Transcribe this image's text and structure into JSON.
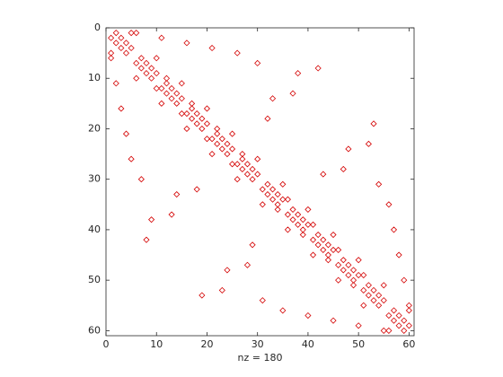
{
  "chart_data": {
    "type": "scatter",
    "marker": "diamond",
    "color": "#d40000",
    "xlabel": "nz = 180",
    "xlim": [
      0,
      61
    ],
    "ylim": [
      0,
      61
    ],
    "y_reverse": true,
    "xticks": [
      0,
      10,
      20,
      30,
      40,
      50,
      60
    ],
    "yticks": [
      0,
      10,
      20,
      30,
      40,
      50,
      60
    ],
    "x": [
      2,
      3,
      4,
      5,
      5,
      7,
      8,
      9,
      10,
      10,
      12,
      13,
      14,
      15,
      15,
      17,
      18,
      19,
      20,
      20,
      22,
      23,
      24,
      25,
      25,
      27,
      28,
      29,
      30,
      30,
      32,
      33,
      34,
      35,
      35,
      37,
      38,
      39,
      40,
      40,
      42,
      43,
      44,
      45,
      45,
      47,
      48,
      49,
      50,
      50,
      52,
      53,
      54,
      55,
      55,
      57,
      58,
      59,
      60,
      60,
      6,
      11,
      16,
      21,
      26,
      30,
      12,
      17,
      22,
      27,
      42,
      38,
      37,
      33,
      32,
      53,
      52,
      48,
      47,
      43,
      54,
      36,
      41,
      46,
      51,
      56,
      57,
      58,
      59,
      60,
      1,
      2,
      3,
      4,
      1,
      6,
      7,
      8,
      9,
      6,
      11,
      12,
      13,
      14,
      11,
      16,
      17,
      18,
      19,
      16,
      21,
      22,
      23,
      24,
      21,
      26,
      27,
      28,
      29,
      26,
      31,
      32,
      33,
      34,
      31,
      36,
      37,
      38,
      39,
      36,
      41,
      42,
      43,
      44,
      41,
      46,
      47,
      48,
      49,
      46,
      51,
      52,
      53,
      54,
      51,
      56,
      57,
      58,
      59,
      56,
      1,
      2,
      3,
      4,
      5,
      7,
      10,
      15,
      20,
      25,
      8,
      9,
      13,
      14,
      18,
      19,
      23,
      24,
      28,
      29,
      31,
      34,
      39,
      44,
      49,
      35,
      40,
      45,
      50,
      55
    ],
    "y": [
      1,
      2,
      3,
      4,
      1,
      6,
      7,
      8,
      9,
      6,
      11,
      12,
      13,
      14,
      11,
      16,
      17,
      18,
      19,
      16,
      21,
      22,
      23,
      24,
      21,
      26,
      27,
      28,
      29,
      26,
      31,
      32,
      33,
      34,
      31,
      36,
      37,
      38,
      39,
      36,
      41,
      42,
      43,
      44,
      41,
      46,
      47,
      48,
      49,
      46,
      51,
      52,
      53,
      54,
      51,
      56,
      57,
      58,
      59,
      56,
      1,
      2,
      3,
      4,
      5,
      7,
      10,
      15,
      20,
      25,
      8,
      9,
      13,
      14,
      18,
      19,
      23,
      24,
      28,
      29,
      31,
      34,
      39,
      44,
      49,
      35,
      40,
      45,
      50,
      55,
      2,
      3,
      4,
      5,
      5,
      7,
      8,
      9,
      10,
      10,
      12,
      13,
      14,
      15,
      15,
      17,
      18,
      19,
      20,
      20,
      22,
      23,
      24,
      25,
      25,
      27,
      28,
      29,
      30,
      30,
      32,
      33,
      34,
      35,
      35,
      37,
      38,
      39,
      40,
      40,
      42,
      43,
      44,
      45,
      45,
      47,
      48,
      49,
      50,
      50,
      52,
      53,
      54,
      55,
      55,
      57,
      58,
      59,
      60,
      60,
      6,
      11,
      16,
      21,
      26,
      30,
      12,
      17,
      22,
      27,
      42,
      38,
      37,
      33,
      32,
      53,
      52,
      48,
      47,
      43,
      54,
      36,
      41,
      46,
      51,
      56,
      57,
      58,
      59,
      60
    ]
  }
}
